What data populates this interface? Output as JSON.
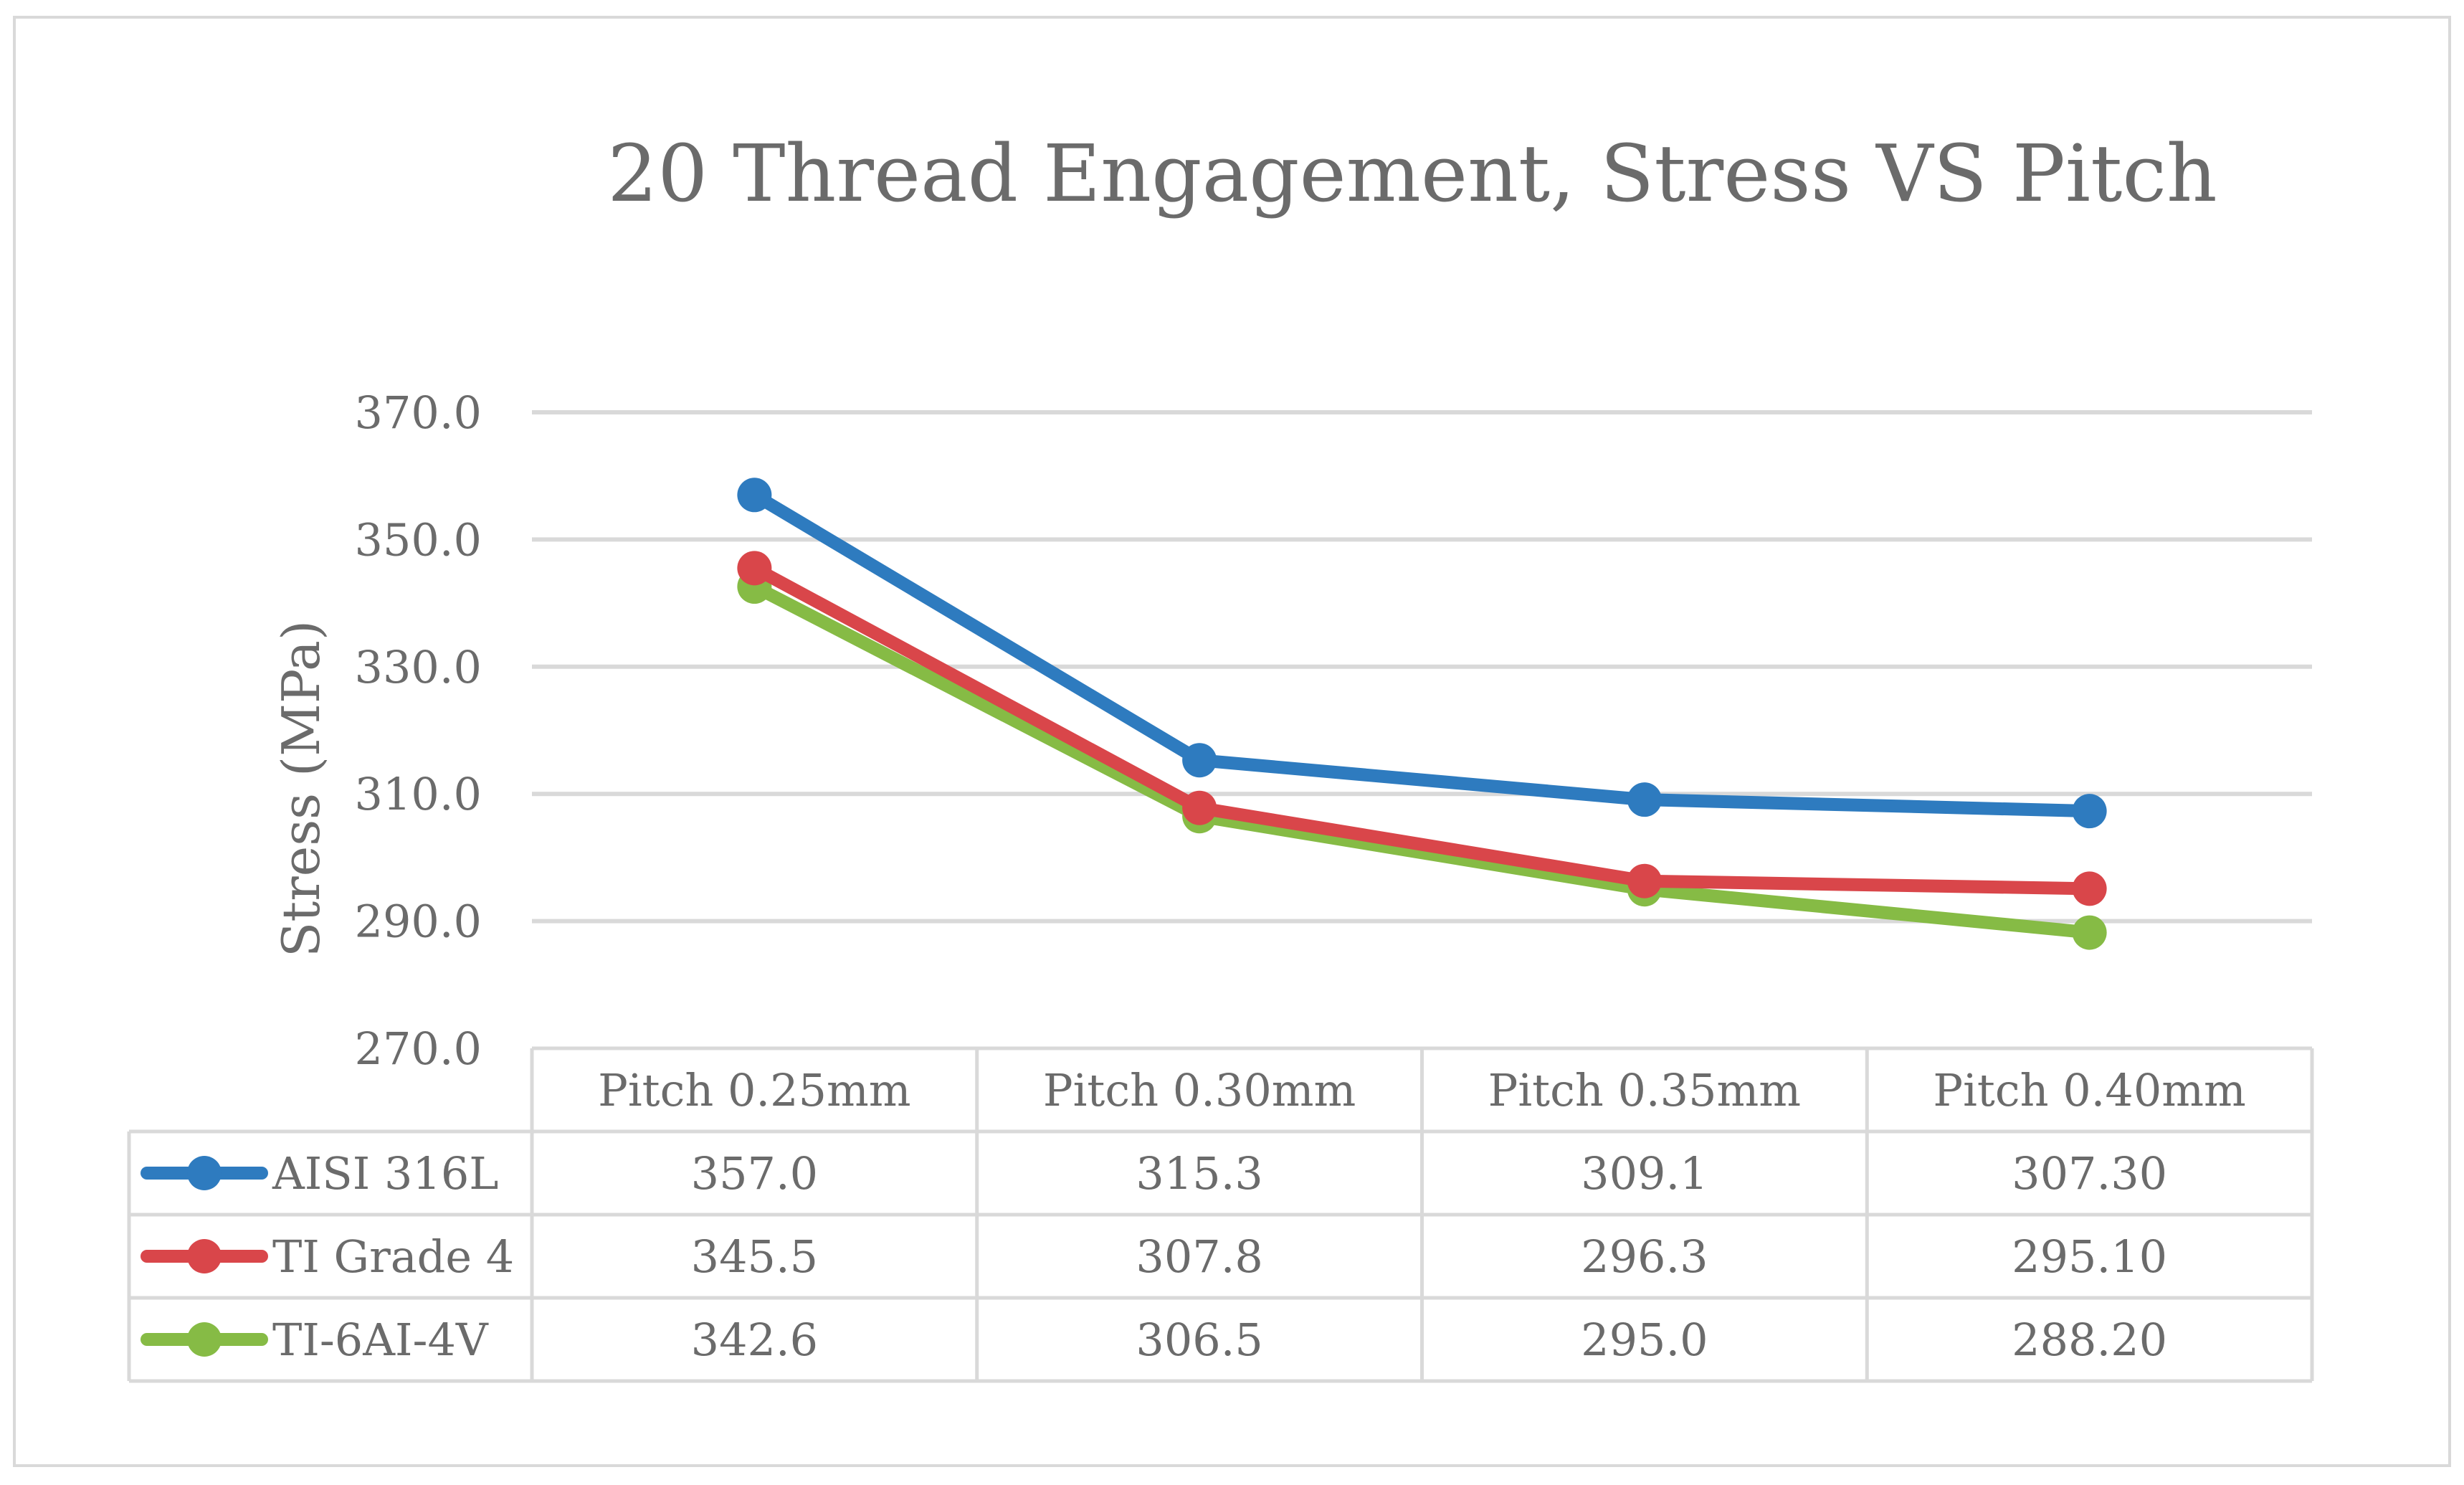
{
  "chart_data": {
    "type": "line",
    "title": "20 Thread Engagement, Stress VS Pitch",
    "xlabel": "",
    "ylabel": "Stress (MPa)",
    "ylim": [
      270,
      370
    ],
    "yticks": [
      "370.0",
      "350.0",
      "330.0",
      "310.0",
      "290.0",
      "270.0"
    ],
    "ytick_values": [
      370,
      350,
      330,
      310,
      290,
      270
    ],
    "categories": [
      "Pitch 0.25mm",
      "Pitch 0.30mm",
      "Pitch 0.35mm",
      "Pitch 0.40mm"
    ],
    "grid": true,
    "legend": "data-table-left",
    "series": [
      {
        "name": "AISI 316L",
        "color": "#2e7bbf",
        "values": [
          357.0,
          315.3,
          309.1,
          307.3
        ],
        "labels": [
          "357.0",
          "315.3",
          "309.1",
          "307.30"
        ]
      },
      {
        "name": "TI Grade 4",
        "color": "#d9464a",
        "values": [
          345.5,
          307.8,
          296.3,
          295.1
        ],
        "labels": [
          "345.5",
          "307.8",
          "296.3",
          "295.10"
        ]
      },
      {
        "name": "TI-6AI-4V",
        "color": "#86bb45",
        "values": [
          342.6,
          306.5,
          295.0,
          288.2
        ],
        "labels": [
          "342.6",
          "306.5",
          "295.0",
          "288.20"
        ]
      }
    ]
  }
}
